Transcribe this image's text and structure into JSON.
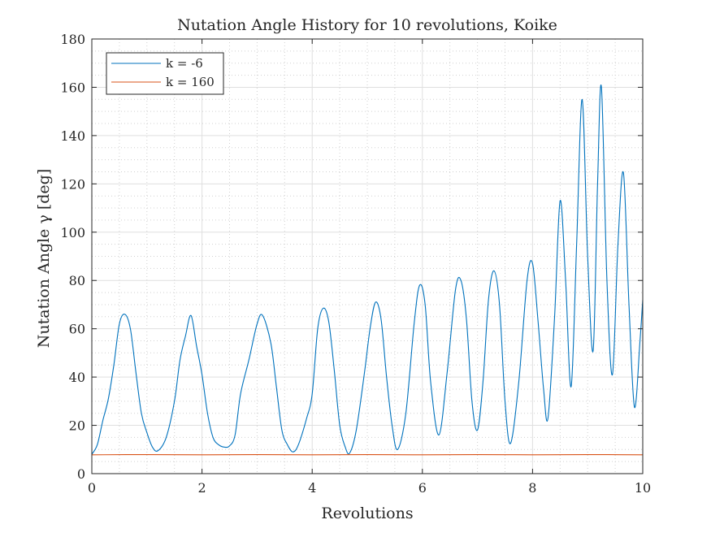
{
  "chart_data": {
    "type": "line",
    "title": "Nutation Angle History for 10 revolutions, Koike",
    "xlabel": "Revolutions",
    "ylabel": "Nutation Angle γ [deg]",
    "xlim": [
      0,
      10
    ],
    "ylim": [
      0,
      180
    ],
    "xticks": [
      0,
      2,
      4,
      6,
      8,
      10
    ],
    "yticks": [
      0,
      20,
      40,
      60,
      80,
      100,
      120,
      140,
      160,
      180
    ],
    "xtick_labels": [
      "0",
      "2",
      "4",
      "6",
      "8",
      "10"
    ],
    "ytick_labels": [
      "0",
      "20",
      "40",
      "60",
      "80",
      "100",
      "120",
      "140",
      "160",
      "180"
    ],
    "grid": true,
    "minor_grid": true,
    "legend_position": "top-left",
    "series": [
      {
        "name": "k = -6",
        "color": "#0072BD",
        "points": [
          [
            0.0,
            8
          ],
          [
            0.1,
            12
          ],
          [
            0.2,
            22
          ],
          [
            0.3,
            31
          ],
          [
            0.4,
            45
          ],
          [
            0.5,
            62
          ],
          [
            0.6,
            66
          ],
          [
            0.7,
            60
          ],
          [
            0.8,
            42
          ],
          [
            0.9,
            25
          ],
          [
            1.0,
            17
          ],
          [
            1.1,
            11
          ],
          [
            1.2,
            9.5
          ],
          [
            1.35,
            15
          ],
          [
            1.5,
            30
          ],
          [
            1.6,
            47
          ],
          [
            1.7,
            57
          ],
          [
            1.8,
            65.5
          ],
          [
            1.9,
            53
          ],
          [
            2.0,
            41
          ],
          [
            2.1,
            25
          ],
          [
            2.2,
            15
          ],
          [
            2.3,
            12
          ],
          [
            2.4,
            11
          ],
          [
            2.5,
            11.5
          ],
          [
            2.6,
            16
          ],
          [
            2.7,
            33
          ],
          [
            2.85,
            47
          ],
          [
            3.0,
            62
          ],
          [
            3.1,
            65.5
          ],
          [
            3.25,
            54
          ],
          [
            3.35,
            36
          ],
          [
            3.45,
            18
          ],
          [
            3.55,
            12
          ],
          [
            3.65,
            9
          ],
          [
            3.75,
            12
          ],
          [
            3.9,
            23
          ],
          [
            4.0,
            33
          ],
          [
            4.1,
            60
          ],
          [
            4.2,
            68.5
          ],
          [
            4.3,
            63
          ],
          [
            4.4,
            43
          ],
          [
            4.5,
            20
          ],
          [
            4.6,
            11
          ],
          [
            4.68,
            8.5
          ],
          [
            4.8,
            18
          ],
          [
            4.95,
            42
          ],
          [
            5.05,
            60
          ],
          [
            5.15,
            71
          ],
          [
            5.25,
            64
          ],
          [
            5.35,
            40
          ],
          [
            5.45,
            20
          ],
          [
            5.55,
            10
          ],
          [
            5.7,
            25
          ],
          [
            5.85,
            62
          ],
          [
            5.95,
            78
          ],
          [
            6.05,
            70
          ],
          [
            6.15,
            38
          ],
          [
            6.3,
            16
          ],
          [
            6.45,
            42
          ],
          [
            6.6,
            76
          ],
          [
            6.7,
            80
          ],
          [
            6.8,
            64
          ],
          [
            6.9,
            30
          ],
          [
            7.0,
            18
          ],
          [
            7.1,
            38
          ],
          [
            7.2,
            72
          ],
          [
            7.3,
            84
          ],
          [
            7.4,
            70
          ],
          [
            7.5,
            30
          ],
          [
            7.6,
            12.5
          ],
          [
            7.75,
            38
          ],
          [
            7.9,
            80
          ],
          [
            8.0,
            87
          ],
          [
            8.1,
            63
          ],
          [
            8.2,
            35
          ],
          [
            8.28,
            23
          ],
          [
            8.4,
            65
          ],
          [
            8.5,
            113
          ],
          [
            8.6,
            80
          ],
          [
            8.7,
            36
          ],
          [
            8.8,
            95
          ],
          [
            8.9,
            155
          ],
          [
            9.0,
            90
          ],
          [
            9.1,
            51
          ],
          [
            9.18,
            120
          ],
          [
            9.25,
            160
          ],
          [
            9.35,
            80
          ],
          [
            9.45,
            41
          ],
          [
            9.55,
            95
          ],
          [
            9.65,
            124.5
          ],
          [
            9.75,
            70
          ],
          [
            9.85,
            27.5
          ],
          [
            9.95,
            55
          ],
          [
            10.0,
            72
          ]
        ]
      },
      {
        "name": "k = 160",
        "color": "#D95319",
        "points": [
          [
            0.0,
            7.8
          ],
          [
            1.0,
            7.9
          ],
          [
            2.0,
            7.8
          ],
          [
            3.0,
            7.9
          ],
          [
            4.0,
            7.8
          ],
          [
            5.0,
            7.9
          ],
          [
            6.0,
            7.8
          ],
          [
            7.0,
            7.9
          ],
          [
            8.0,
            7.8
          ],
          [
            9.0,
            7.9
          ],
          [
            10.0,
            7.8
          ]
        ]
      }
    ]
  }
}
